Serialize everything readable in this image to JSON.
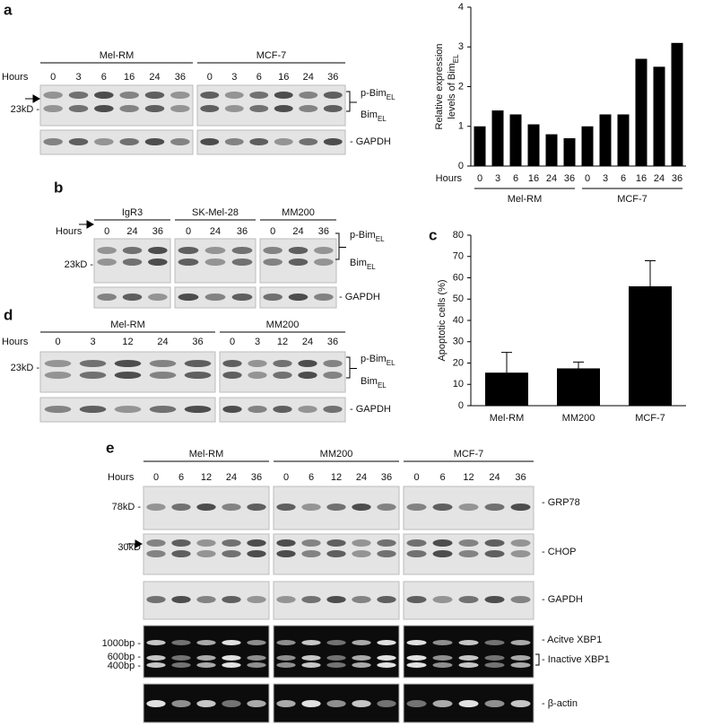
{
  "panels": {
    "a": {
      "label": "a",
      "hours_label": "Hours",
      "groups": [
        {
          "name": "Mel-RM",
          "hours": [
            0,
            3,
            6,
            16,
            24,
            36
          ]
        },
        {
          "name": "MCF-7",
          "hours": [
            0,
            3,
            6,
            16,
            24,
            36
          ]
        }
      ],
      "markers": [
        "23kD -"
      ],
      "bands": [
        {
          "text": "p-Bim",
          "sub": "EL"
        },
        {
          "text": "Bim",
          "sub": "EL"
        }
      ],
      "loading": [
        "- GAPDH"
      ]
    },
    "b": {
      "label": "b",
      "hours_label": "Hours",
      "groups": [
        {
          "name": "IgR3",
          "hours": [
            0,
            24,
            36
          ]
        },
        {
          "name": "SK-Mel-28",
          "hours": [
            0,
            24,
            36
          ]
        },
        {
          "name": "MM200",
          "hours": [
            0,
            24,
            36
          ]
        }
      ],
      "markers": [
        "23kD -"
      ],
      "bands": [
        {
          "text": "p-Bim",
          "sub": "EL"
        },
        {
          "text": "Bim",
          "sub": "EL"
        }
      ],
      "loading": [
        "- GAPDH"
      ]
    },
    "d": {
      "label": "d",
      "hours_label": "Hours",
      "groups": [
        {
          "name": "Mel-RM",
          "hours": [
            0,
            3,
            12,
            24,
            36
          ]
        },
        {
          "name": "MM200",
          "hours": [
            0,
            3,
            12,
            24,
            36
          ]
        }
      ],
      "markers": [
        "23kD -"
      ],
      "bands": [
        {
          "text": "p-Bim",
          "sub": "EL"
        },
        {
          "text": "Bim",
          "sub": "EL"
        }
      ],
      "loading": [
        "- GAPDH"
      ]
    },
    "e": {
      "label": "e",
      "hours_label": "Hours",
      "groups": [
        {
          "name": "Mel-RM",
          "hours": [
            0,
            6,
            12,
            24,
            36
          ]
        },
        {
          "name": "MM200",
          "hours": [
            0,
            6,
            12,
            24,
            36
          ]
        },
        {
          "name": "MCF-7",
          "hours": [
            0,
            6,
            12,
            24,
            36
          ]
        }
      ],
      "markers": [
        "78kD -",
        "30kD",
        "1000bp -",
        "600bp -",
        "400bp -"
      ],
      "loading": [
        "- GRP78",
        "- CHOP",
        "- GAPDH",
        "- Acitve XBP1",
        "- Inactive XBP1",
        "- β-actin"
      ]
    }
  },
  "chart_data": [
    {
      "type": "bar",
      "ylabel": [
        "Relative expression",
        "levels of Bim"
      ],
      "ylabel_sub": "EL",
      "x_label": "Hours",
      "categories": [
        "0",
        "3",
        "6",
        "16",
        "24",
        "36",
        "0",
        "3",
        "6",
        "16",
        "24",
        "36"
      ],
      "groups": [
        "Mel-RM",
        "MCF-7"
      ],
      "values": [
        1.0,
        1.4,
        1.3,
        1.05,
        0.8,
        0.7,
        1.0,
        1.3,
        1.3,
        2.7,
        2.5,
        3.1
      ],
      "color": "#000000",
      "ylim": [
        0,
        4
      ],
      "yticks": [
        0,
        1,
        2,
        3,
        4
      ]
    },
    {
      "type": "bar",
      "label": "c",
      "ylabel": "Apoptotic cells (%)",
      "categories": [
        "Mel-RM",
        "MM200",
        "MCF-7"
      ],
      "values": [
        15.5,
        17.5,
        56
      ],
      "errors": [
        9.5,
        3,
        12
      ],
      "color": "#000000",
      "ylim": [
        0,
        80
      ],
      "yticks": [
        0,
        10,
        20,
        30,
        40,
        50,
        60,
        70,
        80
      ]
    }
  ]
}
